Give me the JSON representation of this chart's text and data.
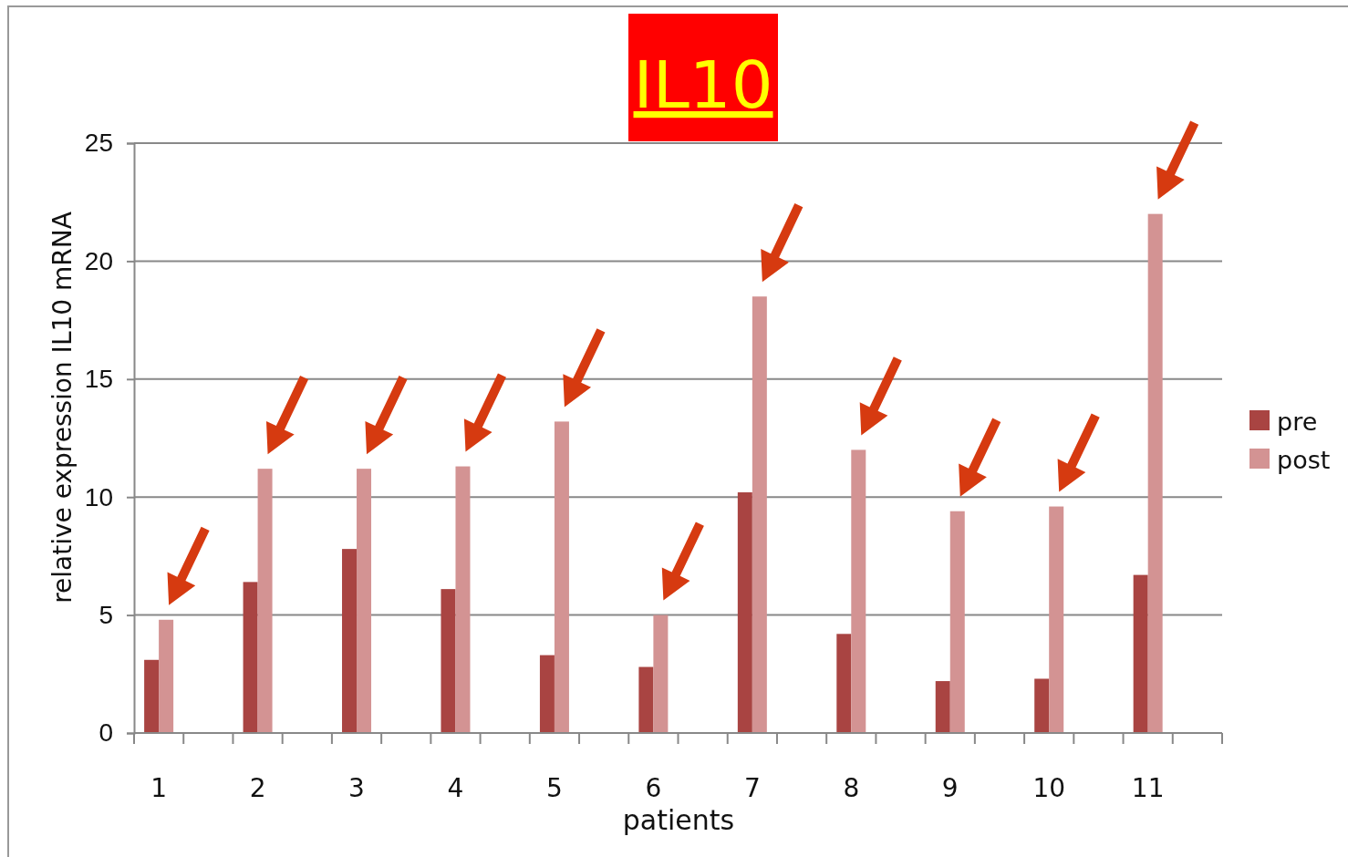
{
  "chart_data": {
    "type": "bar",
    "title": "IL10",
    "xlabel": "patients",
    "ylabel": "relative expression IL10 mRNA",
    "categories": [
      "1",
      "2",
      "3",
      "4",
      "5",
      "6",
      "7",
      "8",
      "9",
      "10",
      "11"
    ],
    "series": [
      {
        "name": "pre",
        "color": "#a94442",
        "values": [
          3.1,
          6.4,
          7.8,
          6.1,
          3.3,
          2.8,
          10.2,
          4.2,
          2.2,
          2.3,
          6.7
        ]
      },
      {
        "name": "post",
        "color": "#d39393",
        "values": [
          4.8,
          11.2,
          11.2,
          11.3,
          13.2,
          5.0,
          18.5,
          12.0,
          9.4,
          9.6,
          22.0
        ]
      }
    ],
    "ylim": [
      0,
      25
    ],
    "yticks": [
      0,
      5,
      10,
      15,
      20,
      25
    ],
    "grid": "y",
    "legend": "right"
  }
}
